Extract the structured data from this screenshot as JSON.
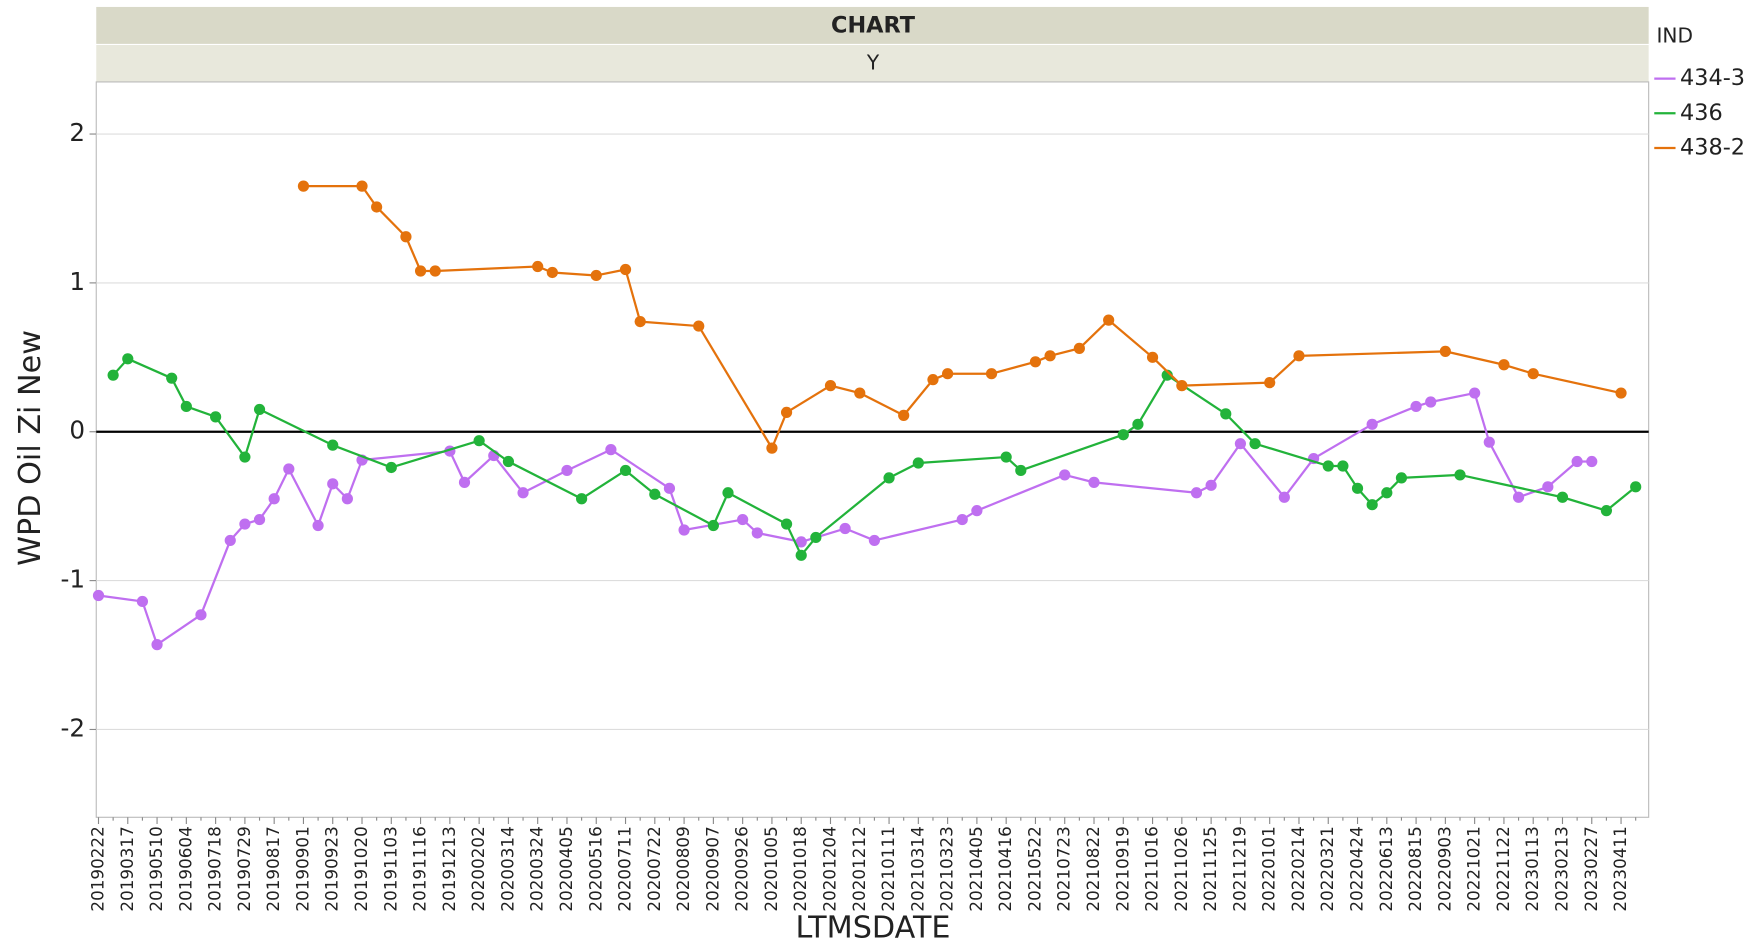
{
  "chart_data": {
    "type": "line",
    "title": "CHART",
    "subtitle": "Y",
    "x_label": "LTMSDATE",
    "y_label": "WPD Oil Zi New",
    "legend_title": "IND",
    "legend_position": "right",
    "grid": true,
    "zero_line": true,
    "categories": [
      "20190222",
      null,
      "20190317",
      null,
      "20190510",
      null,
      "20190604",
      null,
      "20190718",
      null,
      "20190729",
      null,
      "20190817",
      null,
      "20190901",
      null,
      "20190923",
      null,
      "20191020",
      null,
      "20191103",
      null,
      "20191116",
      null,
      "20191213",
      null,
      "20200202",
      null,
      "20200314",
      null,
      "20200324",
      null,
      "20200405",
      null,
      "20200516",
      null,
      "20200711",
      null,
      "20200722",
      null,
      "20200809",
      null,
      "20200907",
      null,
      "20200926",
      null,
      "20201005",
      null,
      "20201018",
      null,
      "20201204",
      null,
      "20201212",
      null,
      "20210111",
      null,
      "20210314",
      null,
      "20210323",
      null,
      "20210405",
      null,
      "20210416",
      null,
      "20210522",
      null,
      "20210723",
      null,
      "20210822",
      null,
      "20210919",
      null,
      "20211016",
      null,
      "20211026",
      null,
      "20211125",
      null,
      "20211219",
      null,
      "20220101",
      null,
      "20220214",
      null,
      "20220321",
      null,
      "20220424",
      null,
      "20220613",
      null,
      "20220815",
      null,
      "20220903",
      null,
      "20221021",
      null,
      "20221122",
      null,
      "20230113",
      null,
      "20230213",
      null,
      "20230227",
      null,
      "20230411",
      null
    ],
    "ylim": [
      -2.59,
      2.35
    ],
    "yticks": [
      -2,
      -1,
      0,
      1,
      2
    ],
    "series": [
      {
        "name": "434-3",
        "color": "#bf6ff0",
        "values": [
          -1.1,
          null,
          null,
          -1.14,
          -1.43,
          null,
          null,
          -1.23,
          null,
          -0.73,
          -0.62,
          -0.59,
          -0.45,
          -0.25,
          null,
          -0.63,
          -0.35,
          -0.45,
          -0.19,
          null,
          null,
          null,
          null,
          null,
          -0.13,
          -0.34,
          null,
          -0.16,
          null,
          -0.41,
          null,
          null,
          -0.26,
          null,
          null,
          -0.12,
          null,
          null,
          null,
          -0.38,
          -0.66,
          null,
          null,
          null,
          -0.59,
          -0.68,
          null,
          null,
          -0.74,
          null,
          null,
          -0.65,
          null,
          -0.73,
          null,
          null,
          null,
          null,
          null,
          -0.59,
          -0.53,
          null,
          null,
          null,
          null,
          null,
          -0.29,
          null,
          -0.34,
          null,
          null,
          null,
          null,
          null,
          null,
          -0.41,
          -0.36,
          null,
          -0.08,
          null,
          null,
          -0.44,
          null,
          -0.18,
          null,
          null,
          null,
          0.05,
          null,
          null,
          0.17,
          0.2,
          null,
          null,
          0.26,
          -0.07,
          null,
          -0.44,
          null,
          -0.37,
          null,
          -0.2,
          -0.2,
          null,
          null,
          null
        ]
      },
      {
        "name": "436",
        "color": "#22b33a",
        "values": [
          null,
          0.38,
          0.49,
          null,
          null,
          0.36,
          0.17,
          null,
          0.1,
          null,
          -0.17,
          0.15,
          null,
          null,
          null,
          null,
          -0.09,
          null,
          null,
          null,
          -0.24,
          null,
          null,
          null,
          null,
          null,
          -0.06,
          null,
          -0.2,
          null,
          null,
          null,
          null,
          -0.45,
          null,
          null,
          -0.26,
          null,
          -0.42,
          null,
          null,
          null,
          -0.63,
          -0.41,
          null,
          null,
          null,
          -0.62,
          -0.83,
          -0.71,
          null,
          null,
          null,
          null,
          -0.31,
          null,
          -0.21,
          null,
          null,
          null,
          null,
          null,
          -0.17,
          -0.26,
          null,
          null,
          null,
          null,
          null,
          null,
          -0.02,
          0.05,
          null,
          0.38,
          null,
          null,
          null,
          0.12,
          null,
          -0.08,
          null,
          null,
          null,
          null,
          -0.23,
          -0.23,
          -0.38,
          -0.49,
          -0.41,
          -0.31,
          null,
          null,
          null,
          -0.29,
          null,
          null,
          null,
          null,
          null,
          null,
          -0.44,
          null,
          null,
          -0.53,
          null,
          -0.37
        ]
      },
      {
        "name": "438-2",
        "color": "#e4720c",
        "values": [
          null,
          null,
          null,
          null,
          null,
          null,
          null,
          null,
          null,
          null,
          null,
          null,
          null,
          null,
          1.65,
          null,
          null,
          null,
          1.65,
          1.51,
          null,
          1.31,
          1.08,
          1.08,
          null,
          null,
          null,
          null,
          null,
          null,
          1.11,
          1.07,
          null,
          null,
          1.05,
          null,
          1.09,
          0.74,
          null,
          null,
          null,
          0.71,
          null,
          null,
          null,
          null,
          -0.11,
          0.13,
          null,
          null,
          0.31,
          null,
          0.26,
          null,
          null,
          0.11,
          null,
          0.35,
          0.39,
          null,
          null,
          0.39,
          null,
          null,
          0.47,
          0.51,
          null,
          0.56,
          null,
          0.75,
          null,
          null,
          0.5,
          null,
          0.31,
          null,
          null,
          null,
          null,
          null,
          0.33,
          null,
          0.51,
          null,
          null,
          null,
          null,
          null,
          null,
          null,
          null,
          null,
          0.54,
          null,
          null,
          null,
          0.45,
          null,
          0.39,
          null,
          null,
          null,
          null,
          null,
          0.26,
          null
        ]
      }
    ]
  }
}
